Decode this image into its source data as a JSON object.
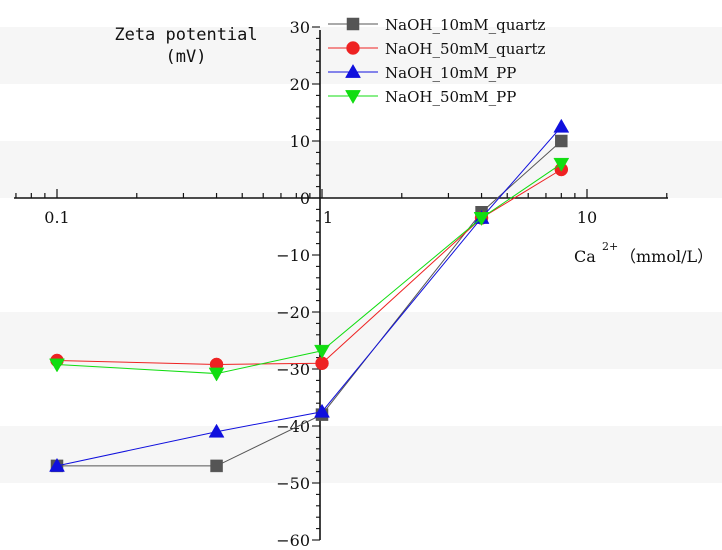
{
  "chart_data": {
    "type": "line",
    "title": "",
    "ylabel_line1": "Zeta potential",
    "ylabel_line2": "(mV)",
    "xlabel_main": "Ca",
    "xlabel_sup": "2+",
    "xlabel_unit": "（mmol/L）",
    "x_scale": "log",
    "xlim": [
      0.06,
      20
    ],
    "ylim": [
      -60,
      30
    ],
    "x_ticks": [
      {
        "value": 0.1,
        "label": "0.1"
      },
      {
        "value": 1,
        "label": "1"
      },
      {
        "value": 10,
        "label": "10"
      }
    ],
    "y_ticks": [
      {
        "value": 30,
        "label": "30"
      },
      {
        "value": 20,
        "label": "20"
      },
      {
        "value": 10,
        "label": "10"
      },
      {
        "value": 0,
        "label": "0"
      },
      {
        "value": -10,
        "label": "−10"
      },
      {
        "value": -20,
        "label": "−20"
      },
      {
        "value": -30,
        "label": "−30"
      },
      {
        "value": -40,
        "label": "−40"
      },
      {
        "value": -50,
        "label": "−50"
      },
      {
        "value": -60,
        "label": "−60"
      }
    ],
    "x": [
      0.1,
      0.4,
      1,
      4,
      8
    ],
    "series": [
      {
        "name": "NaOH_10mM_quartz",
        "color": "#555555",
        "marker": "square",
        "values": [
          -47,
          -47,
          -38,
          -2.5,
          10
        ]
      },
      {
        "name": "NaOH_50mM_quartz",
        "color": "#ee2222",
        "marker": "circle",
        "values": [
          -28.5,
          -29.2,
          -29,
          -3.5,
          5
        ]
      },
      {
        "name": "NaOH_10mM_PP",
        "color": "#1010dd",
        "marker": "triangle-up",
        "values": [
          -47,
          -41,
          -37.5,
          -3.5,
          12.5
        ]
      },
      {
        "name": "NaOH_50mM_PP",
        "color": "#11dd11",
        "marker": "triangle-down",
        "values": [
          -29.2,
          -30.8,
          -26.8,
          -3.5,
          6
        ]
      }
    ],
    "grid": false,
    "legend_position": "top"
  }
}
